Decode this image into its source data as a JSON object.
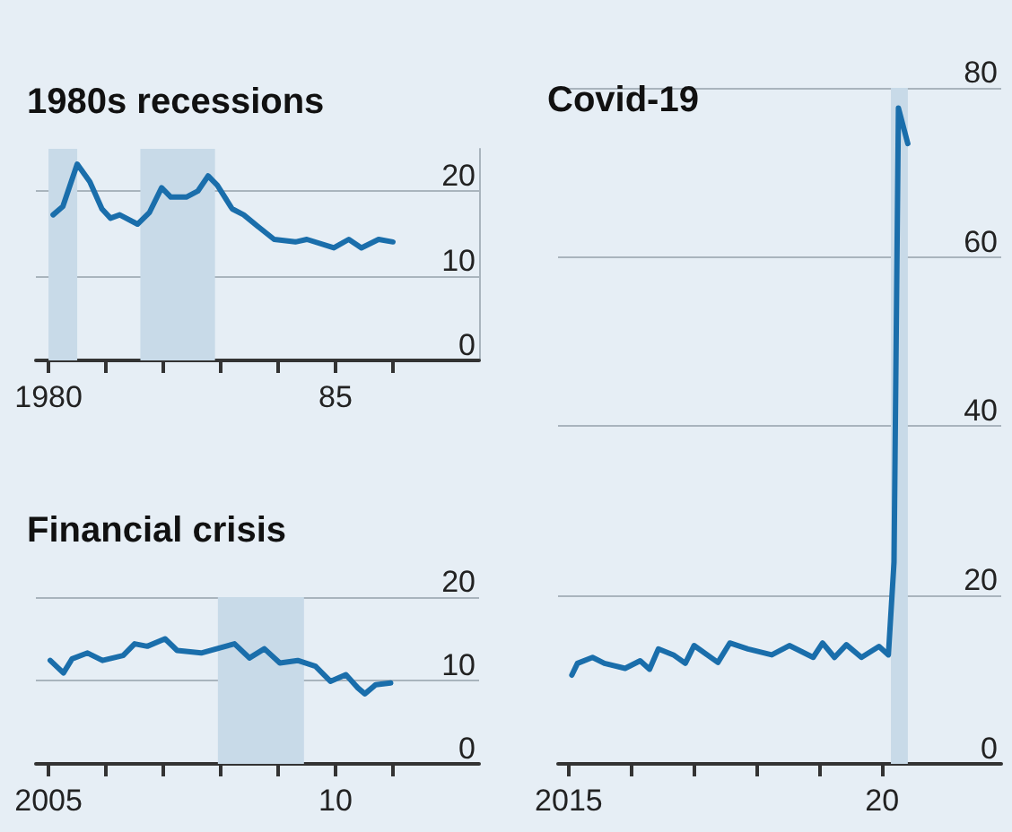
{
  "chart_data": [
    {
      "type": "line",
      "title": "1980s recessions",
      "grid": "y",
      "xlim": [
        1979.78,
        1987.5
      ],
      "ylim": [
        0,
        25
      ],
      "yticks": [
        0,
        10,
        20
      ],
      "xticks": [
        {
          "value": 1980,
          "label": "1980"
        },
        {
          "value": 1981,
          "label": null
        },
        {
          "value": 1982,
          "label": null
        },
        {
          "value": 1983,
          "label": null
        },
        {
          "value": 1984,
          "label": null
        },
        {
          "value": 1985,
          "label": "85"
        },
        {
          "value": 1986,
          "label": null
        }
      ],
      "bands": [
        {
          "axis": "x",
          "from": 1980.0,
          "to": 1980.5,
          "color": "#c8dae8"
        },
        {
          "axis": "x",
          "from": 1981.6,
          "to": 1982.9,
          "color": "#c8dae8"
        }
      ],
      "series": [
        {
          "color": "#1a6eab",
          "x": [
            1980.08,
            1980.25,
            1980.5,
            1980.72,
            1980.93,
            1981.08,
            1981.24,
            1981.55,
            1981.76,
            1981.97,
            1982.13,
            1982.4,
            1982.6,
            1982.78,
            1982.94,
            1983.2,
            1983.4,
            1983.67,
            1983.93,
            1984.3,
            1984.5,
            1984.97,
            1985.23,
            1985.45,
            1985.75,
            1986.0
          ],
          "values": [
            17.2,
            18.2,
            23.2,
            21.1,
            17.9,
            16.8,
            17.2,
            16.1,
            17.5,
            20.4,
            19.3,
            19.3,
            20.0,
            21.8,
            20.7,
            17.9,
            17.2,
            15.7,
            14.3,
            14.0,
            14.3,
            13.3,
            14.3,
            13.3,
            14.3,
            14.0
          ]
        }
      ]
    },
    {
      "type": "line",
      "title": "Financial crisis",
      "grid": "y",
      "xlim": [
        2004.78,
        2012.5
      ],
      "ylim": [
        0,
        20
      ],
      "yticks": [
        0,
        10,
        20
      ],
      "xticks": [
        {
          "value": 2005,
          "label": "2005"
        },
        {
          "value": 2006,
          "label": null
        },
        {
          "value": 2007,
          "label": null
        },
        {
          "value": 2008,
          "label": null
        },
        {
          "value": 2009,
          "label": null
        },
        {
          "value": 2010,
          "label": "10"
        },
        {
          "value": 2011,
          "label": null
        }
      ],
      "bands": [
        {
          "axis": "x",
          "from": 2007.95,
          "to": 2009.45,
          "color": "#c8dae8"
        }
      ],
      "series": [
        {
          "color": "#1a6eab",
          "x": [
            2005.03,
            2005.26,
            2005.41,
            2005.68,
            2005.94,
            2006.3,
            2006.5,
            2006.72,
            2007.03,
            2007.24,
            2007.66,
            2008.24,
            2008.5,
            2008.76,
            2009.03,
            2009.34,
            2009.65,
            2009.91,
            2010.18,
            2010.39,
            2010.51,
            2010.7,
            2010.96
          ],
          "values": [
            12.4,
            10.9,
            12.6,
            13.3,
            12.4,
            13.0,
            14.4,
            14.1,
            15.0,
            13.6,
            13.3,
            14.4,
            12.7,
            13.8,
            12.1,
            12.4,
            11.7,
            9.9,
            10.7,
            9.1,
            8.4,
            9.5,
            9.7
          ]
        }
      ]
    },
    {
      "type": "line",
      "title": "Covid-19",
      "grid": "y",
      "xlim": [
        2014.83,
        2021.9
      ],
      "ylim": [
        0,
        80
      ],
      "yticks": [
        0,
        20,
        40,
        60,
        80
      ],
      "xticks": [
        {
          "value": 2015,
          "label": "2015"
        },
        {
          "value": 2016,
          "label": null
        },
        {
          "value": 2017,
          "label": null
        },
        {
          "value": 2018,
          "label": null
        },
        {
          "value": 2019,
          "label": null
        },
        {
          "value": 2020,
          "label": "20"
        }
      ],
      "bands": [
        {
          "axis": "x",
          "from": 2020.14,
          "to": 2020.41,
          "color": "#c8dae8"
        }
      ],
      "series": [
        {
          "color": "#1a6eab",
          "x": [
            2015.05,
            2015.14,
            2015.38,
            2015.57,
            2015.9,
            2016.14,
            2016.29,
            2016.43,
            2016.67,
            2016.86,
            2017.0,
            2017.38,
            2017.57,
            2017.86,
            2018.24,
            2018.52,
            2018.9,
            2019.05,
            2019.24,
            2019.43,
            2019.67,
            2019.95,
            2020.1,
            2020.19,
            2020.26,
            2020.41
          ],
          "values": [
            10.5,
            11.9,
            12.6,
            11.9,
            11.3,
            12.2,
            11.2,
            13.6,
            12.9,
            11.9,
            14.0,
            12.0,
            14.3,
            13.6,
            12.9,
            14.0,
            12.6,
            14.3,
            12.6,
            14.1,
            12.6,
            13.9,
            12.9,
            23.9,
            77.6,
            73.4
          ]
        }
      ]
    }
  ]
}
